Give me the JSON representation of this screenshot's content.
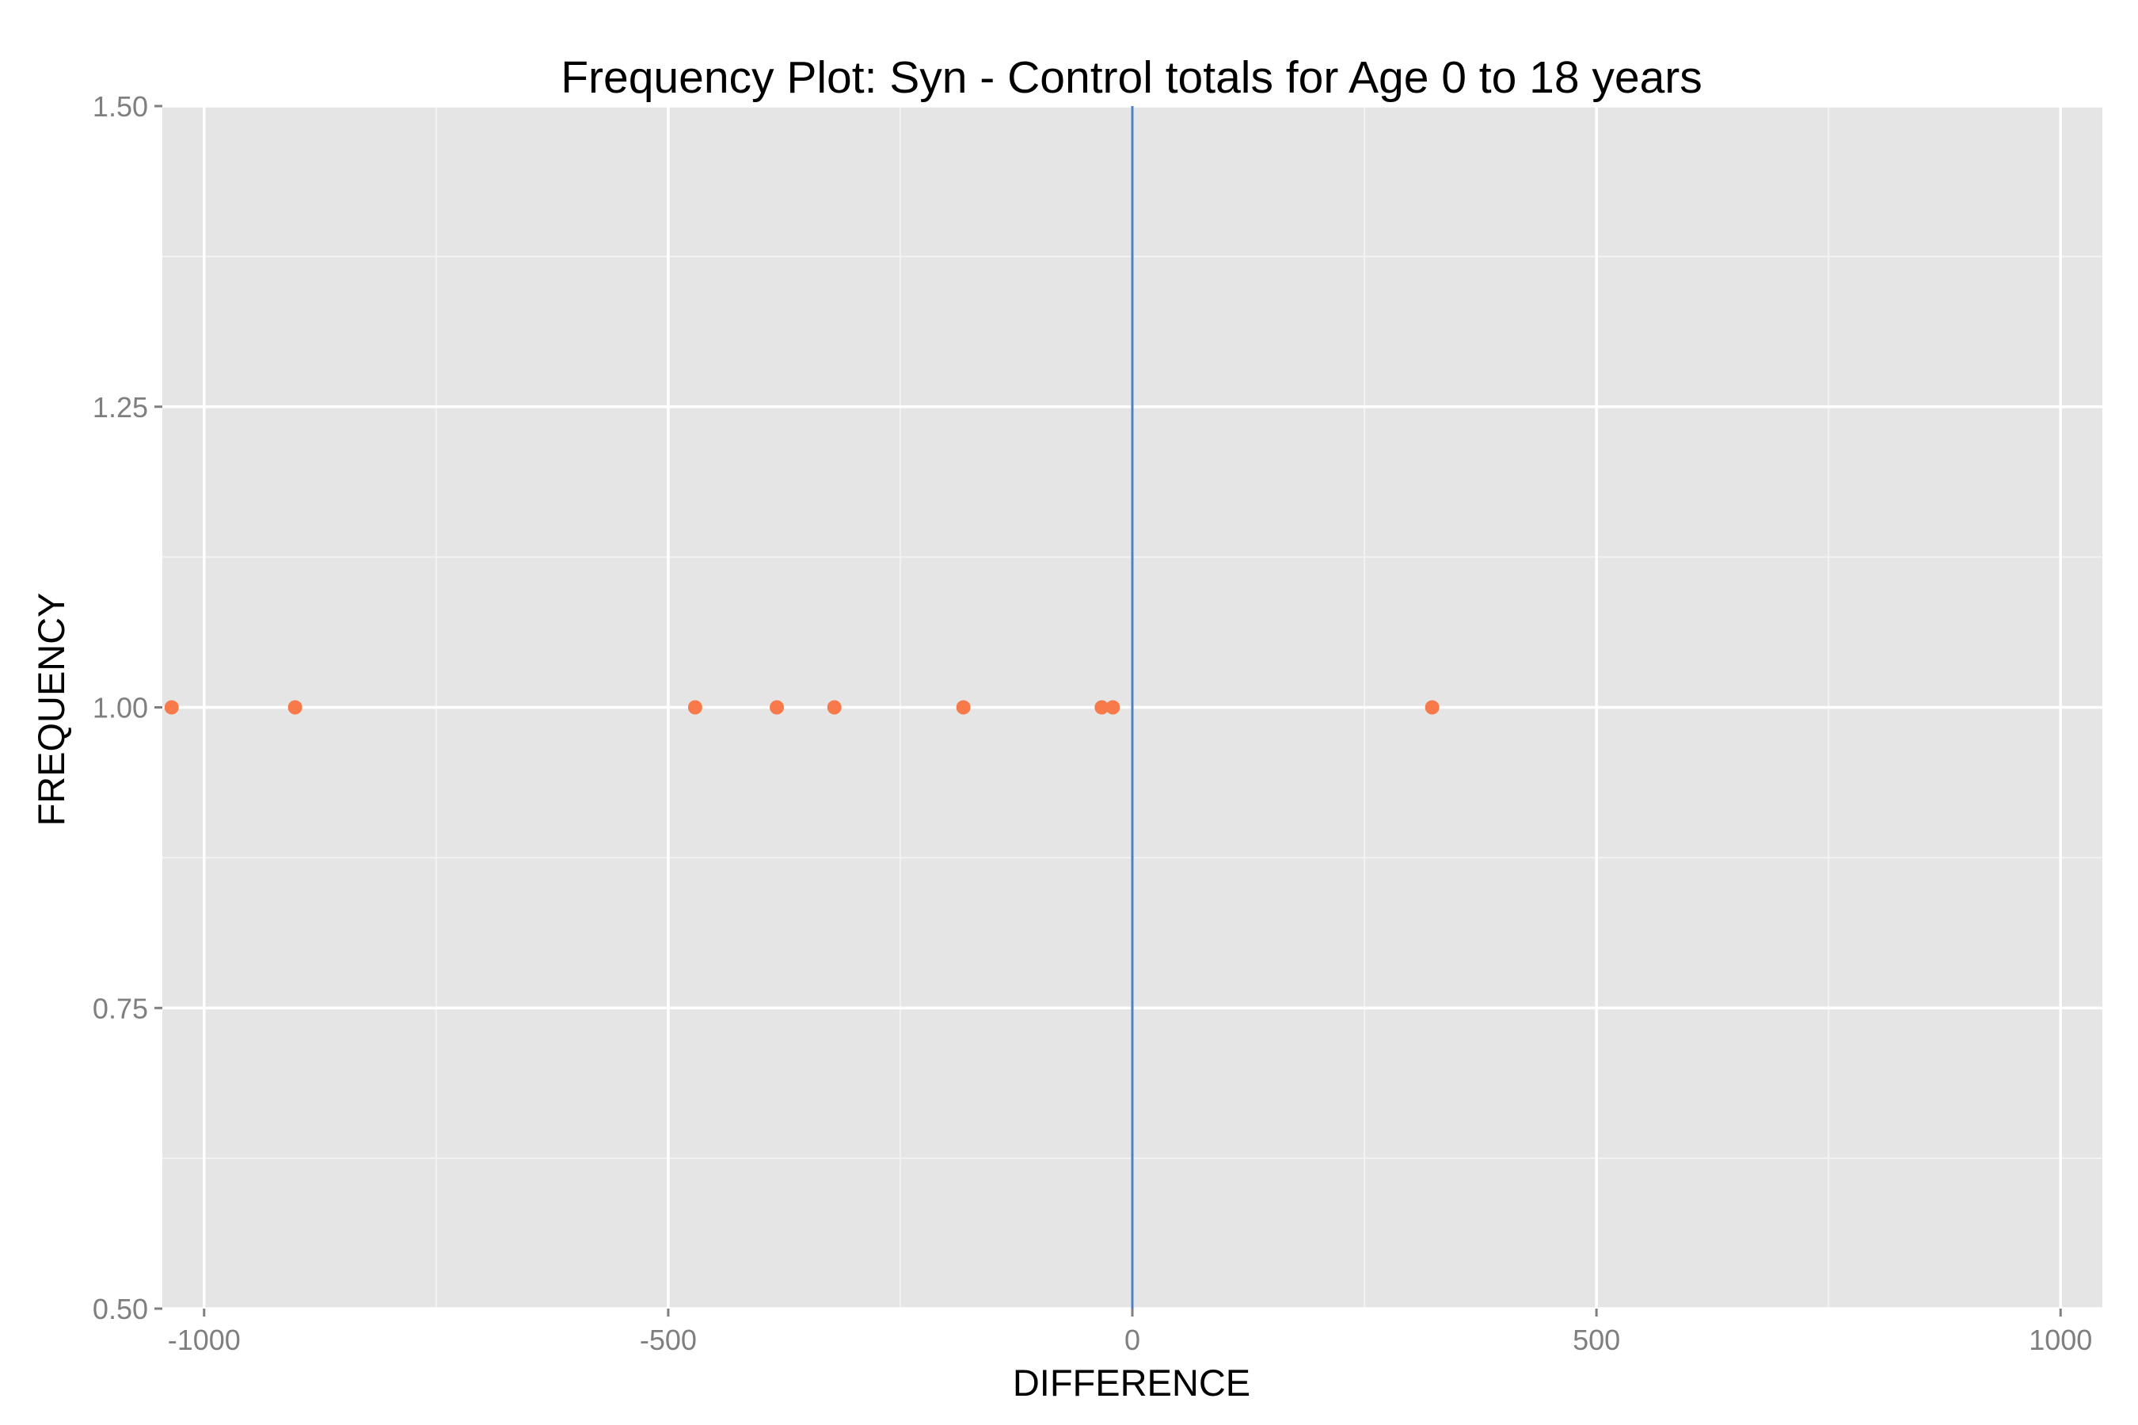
{
  "chart_data": {
    "type": "scatter",
    "title": "Frequency Plot: Syn - Control totals for Age 0 to 18 years",
    "xlabel": "DIFFERENCE",
    "ylabel": "FREQUENCY",
    "xlim": [
      -1045,
      1045
    ],
    "ylim": [
      0.5,
      1.5
    ],
    "x_ticks": [
      -1000,
      -500,
      0,
      500,
      1000
    ],
    "x_tick_labels": [
      "-1000",
      "-500",
      "0",
      "500",
      "1000"
    ],
    "y_ticks": [
      0.5,
      0.75,
      1.0,
      1.25,
      1.5
    ],
    "y_tick_labels": [
      "0.50",
      "0.75",
      "1.00",
      "1.25",
      "1.50"
    ],
    "grid": true,
    "reference_line": {
      "x": 0,
      "color": "#4f7fbf"
    },
    "point_color": "#f8794a",
    "panel_color": "#e5e5e5",
    "points": [
      {
        "x": -1035,
        "y": 1
      },
      {
        "x": -902,
        "y": 1
      },
      {
        "x": -471,
        "y": 1
      },
      {
        "x": -383,
        "y": 1
      },
      {
        "x": -321,
        "y": 1
      },
      {
        "x": -182,
        "y": 1
      },
      {
        "x": -33,
        "y": 1
      },
      {
        "x": -21,
        "y": 1
      },
      {
        "x": 323,
        "y": 1
      }
    ]
  }
}
